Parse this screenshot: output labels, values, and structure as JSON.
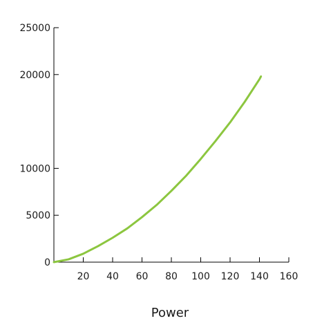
{
  "chart_data": {
    "type": "line",
    "title": "",
    "xlabel": "Power",
    "ylabel": "",
    "xlim": [
      0,
      160
    ],
    "ylim": [
      0,
      25000
    ],
    "x_ticks": [
      20,
      40,
      60,
      80,
      100,
      120,
      140,
      160
    ],
    "y_ticks": [
      0,
      5000,
      10000,
      20000,
      25000
    ],
    "grid": false,
    "legend": "none",
    "series": [
      {
        "color": "#8cc63f",
        "x": [
          0,
          10,
          20,
          30,
          40,
          50,
          60,
          70,
          80,
          90,
          100,
          110,
          120,
          130,
          140,
          141
        ],
        "y": [
          0,
          300,
          900,
          1700,
          2600,
          3600,
          4800,
          6100,
          7600,
          9200,
          11000,
          12900,
          14900,
          17100,
          19500,
          19800
        ]
      }
    ]
  }
}
